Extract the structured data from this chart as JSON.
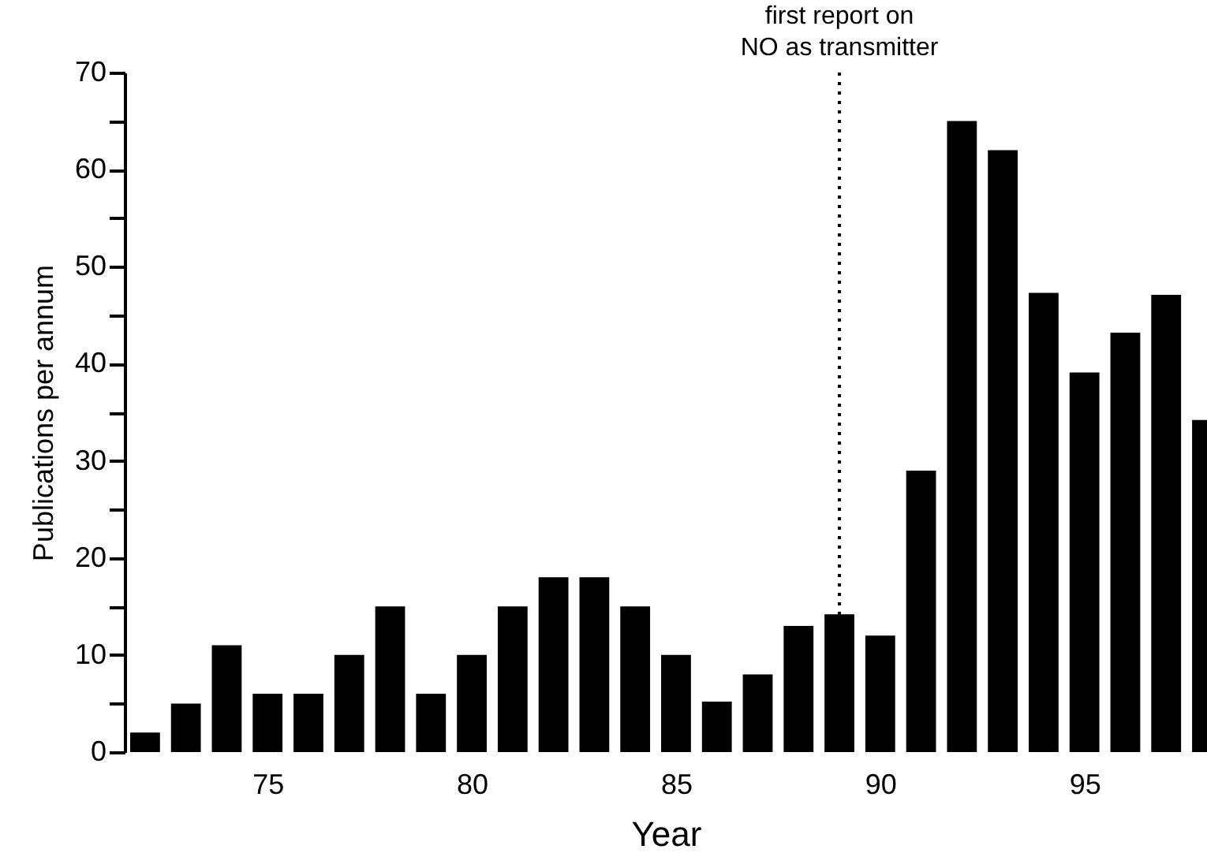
{
  "chart_data": {
    "type": "bar",
    "xlabel": "Year",
    "ylabel": "Publications per annum",
    "x": [
      72,
      73,
      74,
      75,
      76,
      77,
      78,
      79,
      80,
      81,
      82,
      83,
      84,
      85,
      86,
      87,
      88,
      89,
      90,
      91,
      92,
      93,
      94,
      95,
      96,
      97,
      98
    ],
    "values": [
      2,
      5,
      11,
      6,
      6,
      10,
      15,
      6,
      10,
      15,
      18,
      18,
      15,
      10,
      5.2,
      8,
      13,
      14.2,
      12,
      29,
      65,
      62,
      47.3,
      39.1,
      43.2,
      47.1,
      34.2
    ],
    "color": "#000000",
    "xlim": [
      71.5,
      98
    ],
    "xticks": [
      75,
      80,
      85,
      90,
      95
    ],
    "ylim": [
      0,
      70
    ],
    "yticks": [
      0,
      {
        "value": 5,
        "label": null
      },
      10,
      {
        "value": 15,
        "label": null
      },
      20,
      {
        "value": 25,
        "label": null
      },
      30,
      {
        "value": 35,
        "label": null
      },
      40,
      {
        "value": 45,
        "label": null
      },
      50,
      {
        "value": 55,
        "label": null
      },
      60,
      {
        "value": 65,
        "label": null
      },
      70
    ],
    "ref_lines": [
      {
        "axis": "x",
        "value": 89,
        "label": "first report on\nNO as transmitter",
        "line_style": "dotted"
      }
    ],
    "grid": false
  }
}
